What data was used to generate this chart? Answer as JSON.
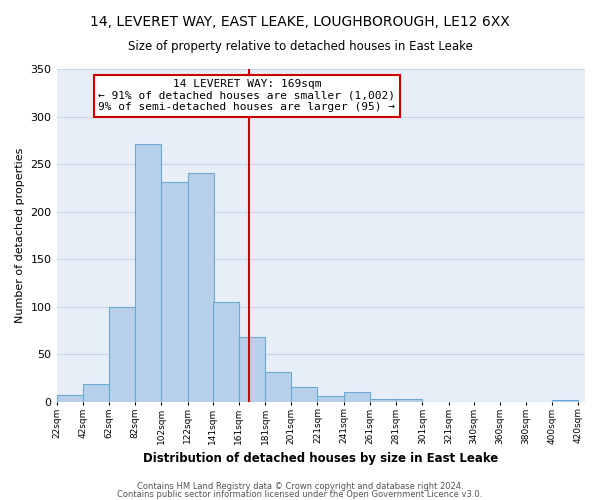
{
  "title": "14, LEVERET WAY, EAST LEAKE, LOUGHBOROUGH, LE12 6XX",
  "subtitle": "Size of property relative to detached houses in East Leake",
  "xlabel": "Distribution of detached houses by size in East Leake",
  "ylabel": "Number of detached properties",
  "bar_left_edges": [
    22,
    42,
    62,
    82,
    102,
    122,
    141,
    161,
    181,
    201,
    221,
    241,
    261,
    281,
    301,
    321,
    340,
    360,
    380,
    400
  ],
  "bar_widths": [
    20,
    20,
    20,
    20,
    20,
    20,
    20,
    20,
    20,
    20,
    20,
    20,
    20,
    20,
    20,
    19,
    20,
    20,
    20,
    20
  ],
  "bar_heights": [
    7,
    19,
    100,
    271,
    231,
    241,
    105,
    68,
    31,
    15,
    6,
    10,
    3,
    3,
    0,
    0,
    0,
    0,
    0,
    2
  ],
  "bar_color": "#b8d0ea",
  "bar_edge_color": "#6aaad4",
  "tick_labels": [
    "22sqm",
    "42sqm",
    "62sqm",
    "82sqm",
    "102sqm",
    "122sqm",
    "141sqm",
    "161sqm",
    "181sqm",
    "201sqm",
    "221sqm",
    "241sqm",
    "261sqm",
    "281sqm",
    "301sqm",
    "321sqm",
    "340sqm",
    "360sqm",
    "380sqm",
    "400sqm",
    "420sqm"
  ],
  "vline_x": 169,
  "vline_color": "#cc0000",
  "ylim": [
    0,
    350
  ],
  "yticks": [
    0,
    50,
    100,
    150,
    200,
    250,
    300,
    350
  ],
  "annotation_title": "14 LEVERET WAY: 169sqm",
  "annotation_line1": "← 91% of detached houses are smaller (1,002)",
  "annotation_line2": "9% of semi-detached houses are larger (95) →",
  "annotation_box_color": "#ffffff",
  "annotation_box_edge": "#cc0000",
  "grid_color": "#c8d4e8",
  "bg_color": "#ffffff",
  "plot_bg_color": "#e8eef8",
  "footer1": "Contains HM Land Registry data © Crown copyright and database right 2024.",
  "footer2": "Contains public sector information licensed under the Open Government Licence v3.0."
}
